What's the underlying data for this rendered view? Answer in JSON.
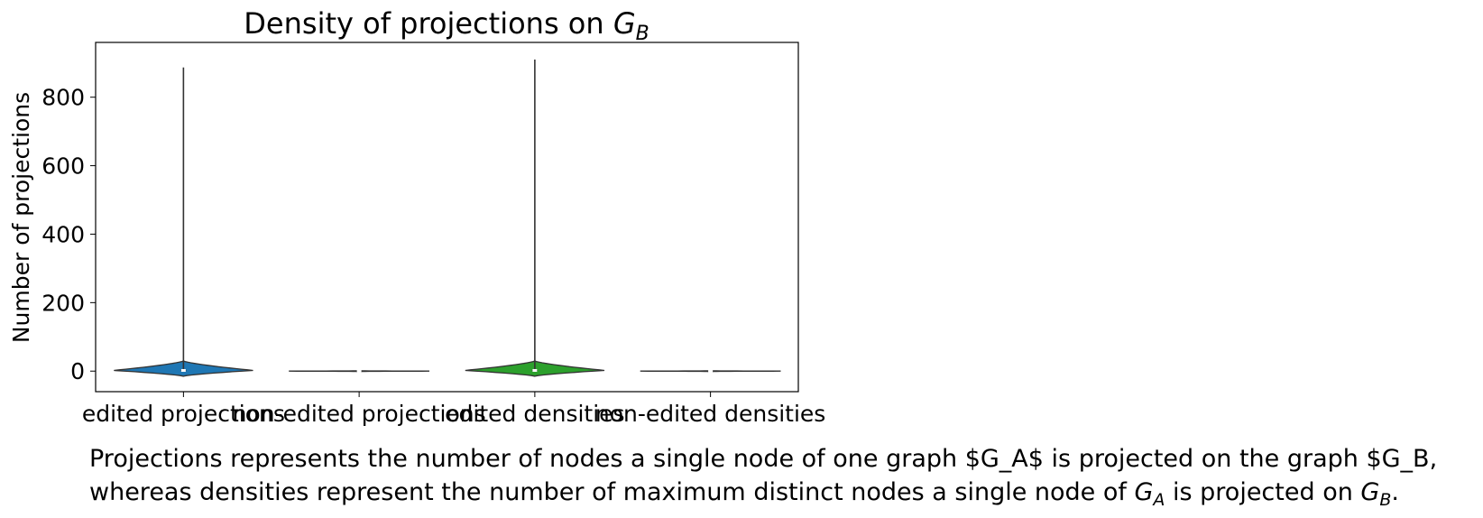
{
  "chart_data": {
    "type": "violin",
    "title": {
      "text": "Density of projections on ",
      "math_base": "G",
      "math_sub": "B"
    },
    "ylabel": "Number of projections",
    "xlabel": "",
    "ylim": [
      -60,
      960
    ],
    "yticks": [
      0,
      200,
      400,
      600,
      800
    ],
    "grid": false,
    "categories": [
      "edited projections",
      "non-edited projections",
      "edited densities",
      "non-edited densities"
    ],
    "series": [
      {
        "category": "edited projections",
        "color": "#1f77b4",
        "min": 0,
        "max": 887,
        "q1": 1,
        "median": 2,
        "q3": 4,
        "body_range": [
          -15,
          30
        ],
        "max_halfwidth": 1.0
      },
      {
        "category": "non-edited projections",
        "color": "#ff7f0e",
        "min": 0,
        "max": 1,
        "q1": 0,
        "median": 0,
        "q3": 1,
        "body_range": [
          -1,
          1
        ],
        "max_halfwidth": 1.0
      },
      {
        "category": "edited densities",
        "color": "#2ca02c",
        "min": 0,
        "max": 910,
        "q1": 1,
        "median": 2,
        "q3": 4,
        "body_range": [
          -15,
          30
        ],
        "max_halfwidth": 1.0
      },
      {
        "category": "non-edited densities",
        "color": "#d62728",
        "min": 0,
        "max": 1,
        "q1": 0,
        "median": 0,
        "q3": 1,
        "body_range": [
          -1,
          1
        ],
        "max_halfwidth": 1.0
      }
    ]
  },
  "caption": {
    "line1": "Projections represents the number of nodes a single node of one graph $G_A$ is projected on the graph $G_B,",
    "line2_pre": "whereas densities represent the number of maximum distinct nodes a single node of ",
    "line2_math1_base": "G",
    "line2_math1_sub": "A",
    "line2_mid": " is projected on ",
    "line2_math2_base": "G",
    "line2_math2_sub": "B",
    "line2_end": "."
  }
}
